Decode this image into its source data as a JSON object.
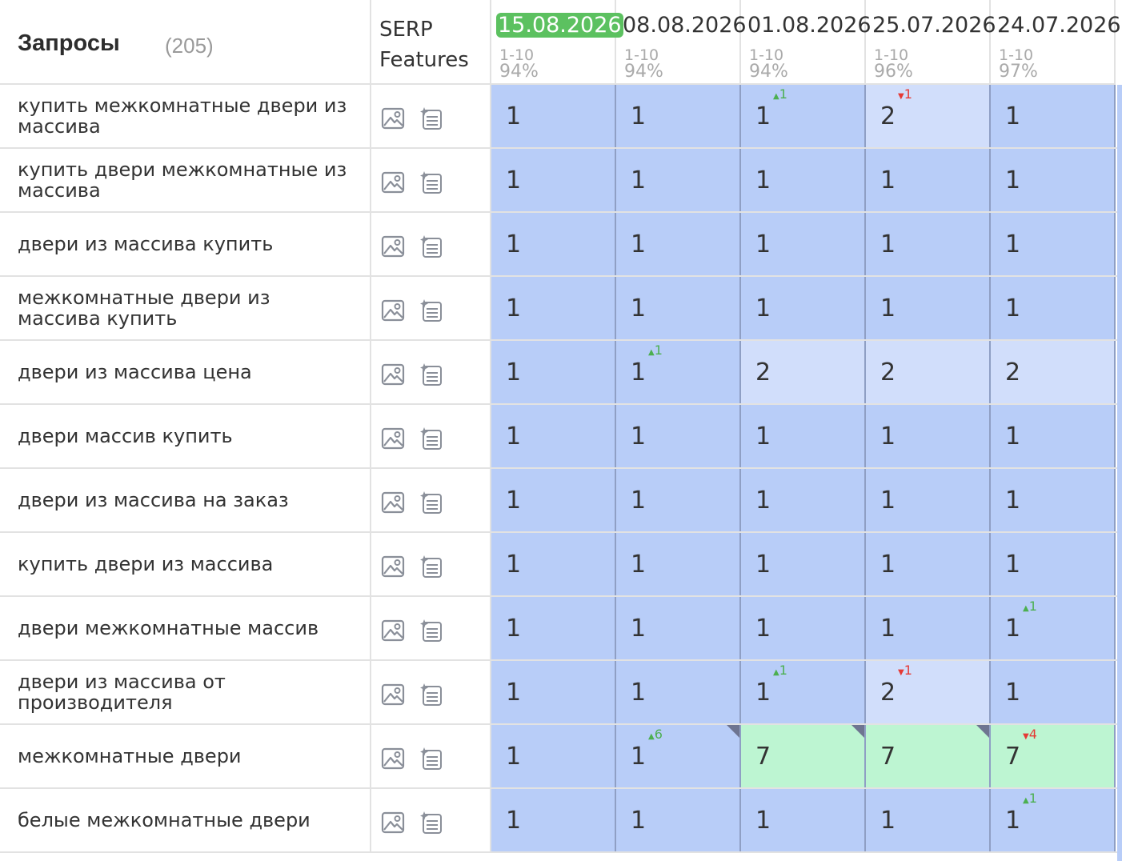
{
  "header": {
    "queries_title": "Запросы",
    "queries_count": "(205)",
    "serp_line1": "SERP",
    "serp_line2": "Features",
    "dates": [
      {
        "date": "15.08.2026",
        "range": "1-10",
        "pct": "94%",
        "active": true
      },
      {
        "date": "08.08.2026",
        "range": "1-10",
        "pct": "94%",
        "active": false
      },
      {
        "date": "01.08.2026",
        "range": "1-10",
        "pct": "94%",
        "active": false
      },
      {
        "date": "25.07.2026",
        "range": "1-10",
        "pct": "96%",
        "active": false
      },
      {
        "date": "24.07.2026",
        "range": "1-10",
        "pct": "97%",
        "active": false
      }
    ]
  },
  "icons": {
    "image": "image-icon",
    "features": "serp-features-icon",
    "corner": "note-marker-icon"
  },
  "colors": {
    "active_date": "#5cc160",
    "top_position": "#b8cdf8",
    "mid_position": "#d1defb",
    "lower_position": "#bdf5d2",
    "delta_up": "#4caf50",
    "delta_down": "#e53935"
  },
  "rows": [
    {
      "query": "купить межкомнатные двери из массива",
      "cells": [
        {
          "value": "1",
          "bg": "blue"
        },
        {
          "value": "1",
          "bg": "blue"
        },
        {
          "value": "1",
          "bg": "blue",
          "delta": "1",
          "dir": "up"
        },
        {
          "value": "2",
          "bg": "light",
          "delta": "1",
          "dir": "down"
        },
        {
          "value": "1",
          "bg": "blue"
        }
      ]
    },
    {
      "query": "купить двери межкомнатные из массива",
      "cells": [
        {
          "value": "1",
          "bg": "blue"
        },
        {
          "value": "1",
          "bg": "blue"
        },
        {
          "value": "1",
          "bg": "blue"
        },
        {
          "value": "1",
          "bg": "blue"
        },
        {
          "value": "1",
          "bg": "blue"
        }
      ]
    },
    {
      "query": "двери из массива купить",
      "cells": [
        {
          "value": "1",
          "bg": "blue"
        },
        {
          "value": "1",
          "bg": "blue"
        },
        {
          "value": "1",
          "bg": "blue"
        },
        {
          "value": "1",
          "bg": "blue"
        },
        {
          "value": "1",
          "bg": "blue"
        }
      ]
    },
    {
      "query": "межкомнатные двери из массива купить",
      "cells": [
        {
          "value": "1",
          "bg": "blue"
        },
        {
          "value": "1",
          "bg": "blue"
        },
        {
          "value": "1",
          "bg": "blue"
        },
        {
          "value": "1",
          "bg": "blue"
        },
        {
          "value": "1",
          "bg": "blue"
        }
      ]
    },
    {
      "query": "двери из массива цена",
      "cells": [
        {
          "value": "1",
          "bg": "blue"
        },
        {
          "value": "1",
          "bg": "blue",
          "delta": "1",
          "dir": "up"
        },
        {
          "value": "2",
          "bg": "light"
        },
        {
          "value": "2",
          "bg": "light"
        },
        {
          "value": "2",
          "bg": "light"
        }
      ]
    },
    {
      "query": "двери массив купить",
      "cells": [
        {
          "value": "1",
          "bg": "blue"
        },
        {
          "value": "1",
          "bg": "blue"
        },
        {
          "value": "1",
          "bg": "blue"
        },
        {
          "value": "1",
          "bg": "blue"
        },
        {
          "value": "1",
          "bg": "blue"
        }
      ]
    },
    {
      "query": "двери из массива на заказ",
      "cells": [
        {
          "value": "1",
          "bg": "blue"
        },
        {
          "value": "1",
          "bg": "blue"
        },
        {
          "value": "1",
          "bg": "blue"
        },
        {
          "value": "1",
          "bg": "blue"
        },
        {
          "value": "1",
          "bg": "blue"
        }
      ]
    },
    {
      "query": "купить двери из массива",
      "cells": [
        {
          "value": "1",
          "bg": "blue"
        },
        {
          "value": "1",
          "bg": "blue"
        },
        {
          "value": "1",
          "bg": "blue"
        },
        {
          "value": "1",
          "bg": "blue"
        },
        {
          "value": "1",
          "bg": "blue"
        }
      ]
    },
    {
      "query": "двери межкомнатные массив",
      "cells": [
        {
          "value": "1",
          "bg": "blue"
        },
        {
          "value": "1",
          "bg": "blue"
        },
        {
          "value": "1",
          "bg": "blue"
        },
        {
          "value": "1",
          "bg": "blue"
        },
        {
          "value": "1",
          "bg": "blue",
          "delta": "1",
          "dir": "up"
        }
      ]
    },
    {
      "query": "двери из массива от производителя",
      "cells": [
        {
          "value": "1",
          "bg": "blue"
        },
        {
          "value": "1",
          "bg": "blue"
        },
        {
          "value": "1",
          "bg": "blue",
          "delta": "1",
          "dir": "up"
        },
        {
          "value": "2",
          "bg": "light",
          "delta": "1",
          "dir": "down"
        },
        {
          "value": "1",
          "bg": "blue"
        }
      ]
    },
    {
      "query": "межкомнатные двери",
      "cells": [
        {
          "value": "1",
          "bg": "blue"
        },
        {
          "value": "1",
          "bg": "blue",
          "delta": "6",
          "dir": "up",
          "corner": true
        },
        {
          "value": "7",
          "bg": "green",
          "corner": true
        },
        {
          "value": "7",
          "bg": "green",
          "corner": true
        },
        {
          "value": "7",
          "bg": "green",
          "delta": "4",
          "dir": "down"
        }
      ]
    },
    {
      "query": "белые межкомнатные двери",
      "cells": [
        {
          "value": "1",
          "bg": "blue"
        },
        {
          "value": "1",
          "bg": "blue"
        },
        {
          "value": "1",
          "bg": "blue"
        },
        {
          "value": "1",
          "bg": "blue"
        },
        {
          "value": "1",
          "bg": "blue",
          "delta": "1",
          "dir": "up"
        }
      ]
    }
  ]
}
